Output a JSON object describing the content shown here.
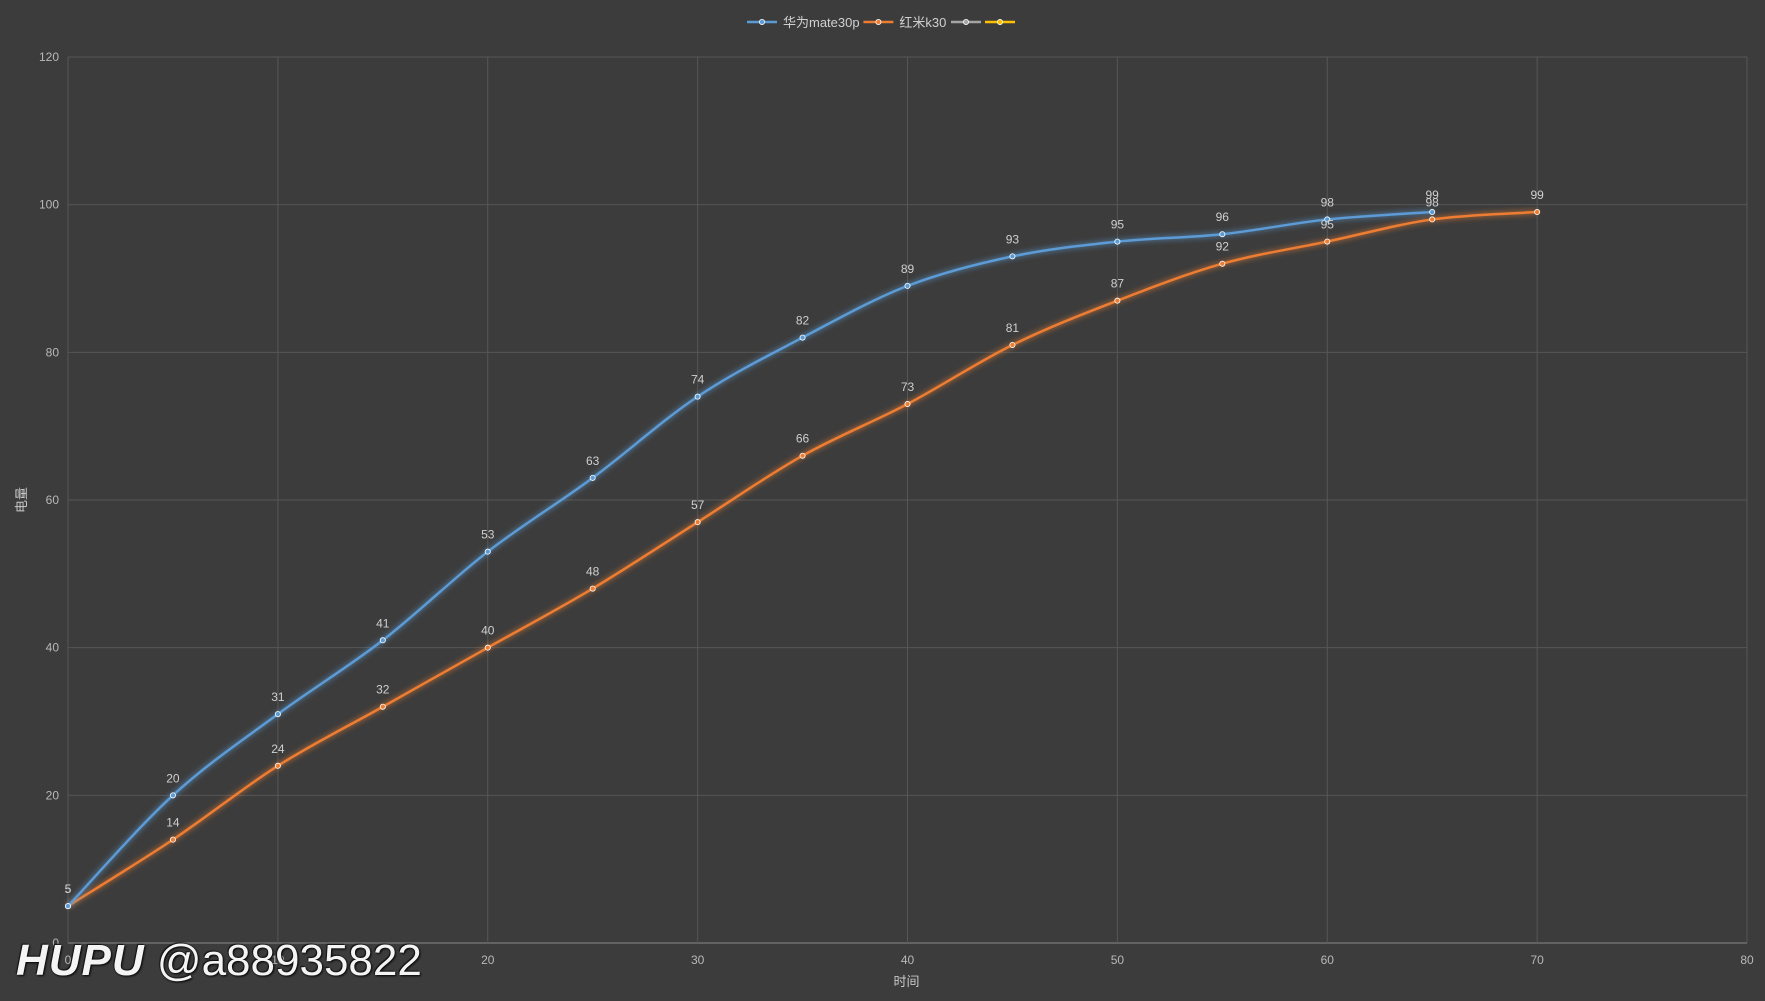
{
  "chart_data": {
    "type": "line",
    "title": "",
    "xlabel": "时间",
    "ylabel": "电量",
    "xlim": [
      0,
      80
    ],
    "ylim": [
      0,
      120
    ],
    "x_ticks": [
      0,
      10,
      20,
      30,
      40,
      50,
      60,
      70,
      80
    ],
    "y_ticks": [
      0,
      20,
      40,
      60,
      80,
      100,
      120
    ],
    "grid": true,
    "legend_position": "top-center",
    "series": [
      {
        "name": "华为mate30p",
        "color": "#5b9bd5",
        "x": [
          0,
          5,
          10,
          15,
          20,
          25,
          30,
          35,
          40,
          45,
          50,
          55,
          60,
          65
        ],
        "values": [
          5,
          20,
          31,
          41,
          53,
          63,
          74,
          82,
          89,
          93,
          95,
          96,
          98,
          99
        ]
      },
      {
        "name": "红米k30",
        "color": "#ed7d31",
        "x": [
          0,
          5,
          10,
          15,
          20,
          25,
          30,
          35,
          40,
          45,
          50,
          55,
          60,
          65,
          70
        ],
        "values": [
          5,
          14,
          24,
          32,
          40,
          48,
          57,
          66,
          73,
          81,
          87,
          92,
          95,
          98,
          99
        ]
      },
      {
        "name": "",
        "color": "#a5a5a5",
        "x": [],
        "values": []
      },
      {
        "name": "",
        "color": "#ffc000",
        "x": [],
        "values": []
      }
    ]
  },
  "watermark": {
    "logo": "HUPU",
    "handle": "@a88935822"
  }
}
